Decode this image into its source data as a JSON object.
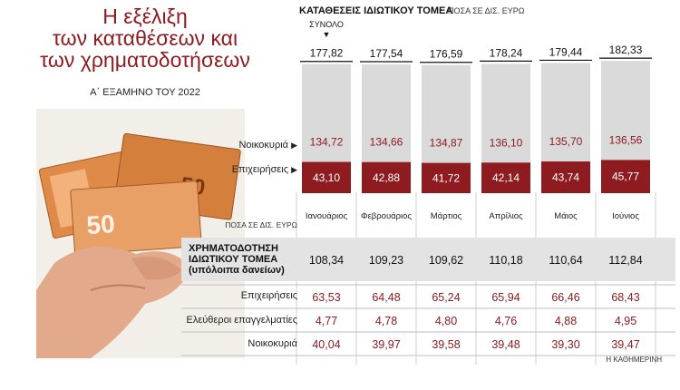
{
  "header": {
    "title_lines": [
      "Η εξέλιξη",
      "των καταθέσεων και",
      "των χρηματοδοτήσεων"
    ],
    "subtitle": "Α΄ ΕΞΑΜΗΝΟ ΤΟΥ 2022"
  },
  "deposits": {
    "title": "ΚΑΤΑΘΕΣΕΙΣ ΙΔΙΩΤΙΚΟΥ ΤΟΜΕΑ",
    "unit": "ΠΟΣΑ ΣΕ ΔΙΣ. ΕΥΡΩ",
    "total_label": "ΣΥΝΟΛΟ",
    "households_label": "Νοικοκυριά",
    "business_label": "Επιχειρήσεις"
  },
  "loans": {
    "unit": "ΠΟΣΑ ΣΕ ΔΙΣ. ΕΥΡΩ",
    "title_lines": [
      "ΧΡΗΜΑΤΟΔΟΤΗΣΗ",
      "ΙΔΙΩΤΙΚΟΥ ΤΟΜΕΑ",
      "(υπόλοιπα δανείων)"
    ],
    "rows": [
      "Επιχειρήσεις",
      "Ελεύθεροι επαγγελματίες",
      "Νοικοκυριά"
    ]
  },
  "source": "Η ΚΑΘΗΜΕΡΙΝΗ",
  "colors": {
    "accent": "#8e1b20",
    "bar_gray": "#dadada",
    "table_gray": "#e3e3e3"
  },
  "icons": {
    "money": "euro-banknotes-in-hand"
  },
  "chart_data": [
    {
      "type": "bar",
      "title": "ΚΑΤΑΘΕΣΕΙΣ ΙΔΙΩΤΙΚΟΥ ΤΟΜΕΑ",
      "categories": [
        "Ιανουάριος",
        "Φεβρουάριος",
        "Μάρτιος",
        "Απρίλιος",
        "Μάιος",
        "Ιούνιος"
      ],
      "series": [
        {
          "name": "ΣΥΝΟΛΟ",
          "values": [
            177.82,
            177.54,
            176.59,
            178.24,
            179.44,
            182.33
          ]
        },
        {
          "name": "Νοικοκυριά",
          "values": [
            134.72,
            134.66,
            134.87,
            136.1,
            135.7,
            136.56
          ]
        },
        {
          "name": "Επιχειρήσεις",
          "values": [
            43.1,
            42.88,
            41.72,
            42.14,
            43.74,
            45.77
          ]
        }
      ],
      "value_labels": {
        "total": [
          "177,82",
          "177,54",
          "176,59",
          "178,24",
          "179,44",
          "182,33"
        ],
        "households": [
          "134,72",
          "134,66",
          "134,87",
          "136,10",
          "135,70",
          "136,56"
        ],
        "business": [
          "43,10",
          "42,88",
          "41,72",
          "42,14",
          "43,74",
          "45,77"
        ]
      }
    },
    {
      "type": "table",
      "title": "ΧΡΗΜΑΤΟΔΟΤΗΣΗ ΙΔΙΩΤΙΚΟΥ ΤΟΜΕΑ (υπόλοιπα δανείων)",
      "columns": [
        "Ιανουάριος",
        "Φεβρουάριος",
        "Μάρτιος",
        "Απρίλιος",
        "Μάιος",
        "Ιούνιος"
      ],
      "rows": [
        {
          "name": "ΧΡΗΜΑΤΟΔΟΤΗΣΗ ΙΔΙΩΤΙΚΟΥ ΤΟΜΕΑ (υπόλοιπα δανείων)",
          "values": [
            "108,34",
            "109,23",
            "109,62",
            "110,18",
            "110,64",
            "112,84"
          ]
        },
        {
          "name": "Επιχειρήσεις",
          "values": [
            "63,53",
            "64,48",
            "65,24",
            "65,94",
            "66,46",
            "68,43"
          ]
        },
        {
          "name": "Ελεύθεροι επαγγελματίες",
          "values": [
            "4,77",
            "4,78",
            "4,80",
            "4,76",
            "4,88",
            "4,95"
          ]
        },
        {
          "name": "Νοικοκυριά",
          "values": [
            "40,04",
            "39,97",
            "39,58",
            "39,48",
            "39,30",
            "39,47"
          ]
        }
      ]
    }
  ]
}
